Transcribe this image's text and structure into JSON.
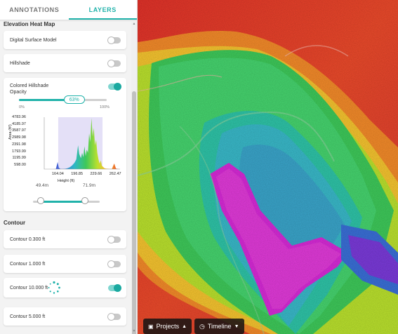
{
  "tabs": [
    {
      "label": "ANNOTATIONS"
    },
    {
      "label": "LAYERS"
    }
  ],
  "elevation": {
    "section_title": "Elevation Heat Map",
    "dsm_label": "Digital Surface Model",
    "hillshade_label": "Hillshade",
    "colored_hillshade_label": "Colored Hillshade",
    "opacity_label": "Opacity",
    "opacity_value_text": "63%",
    "opacity_value": 0.63,
    "opacity_min": "0%",
    "opacity_max": "100%",
    "range_low_label": "49.4m",
    "range_high_label": "71.9m",
    "range_low": 0.12,
    "range_high": 0.78
  },
  "chart_data": {
    "type": "area",
    "xlabel": "Height (ft)",
    "ylabel": "Area (ft²)",
    "x_ticks": [
      "164.04",
      "196.85",
      "229.66",
      "262.47"
    ],
    "y_ticks": [
      "4783.96",
      "4185.97",
      "3587.97",
      "2989.98",
      "2391.98",
      "1793.99",
      "1195.99",
      "598.00"
    ],
    "ylim": [
      0,
      4783.96
    ],
    "xlim": [
      140,
      270
    ],
    "highlight_range": [
      164,
      240
    ],
    "x": [
      140,
      148,
      155,
      160,
      163,
      165,
      168,
      172,
      176,
      180,
      184,
      188,
      192,
      195,
      198,
      200,
      203,
      205,
      207,
      209,
      211,
      213,
      215,
      217,
      219,
      221,
      223,
      225,
      227,
      229,
      231,
      233,
      235,
      237,
      239,
      241,
      243,
      245,
      247,
      249,
      252,
      256,
      260,
      263,
      266,
      270
    ],
    "y": [
      0,
      0,
      0,
      20,
      650,
      120,
      20,
      10,
      30,
      80,
      180,
      350,
      600,
      900,
      2200,
      1400,
      1000,
      1500,
      1100,
      2100,
      1200,
      1800,
      1500,
      3300,
      2500,
      4700,
      3000,
      3800,
      2200,
      2700,
      1500,
      900,
      500,
      800,
      300,
      200,
      100,
      60,
      40,
      30,
      20,
      10,
      520,
      60,
      10,
      0
    ]
  },
  "contour": {
    "section_title": "Contour",
    "items": [
      {
        "label": "Contour 0.300 ft",
        "on": false
      },
      {
        "label": "Contour 1.000 ft",
        "on": false
      },
      {
        "label": "Contour 10.000 ft",
        "on": true
      },
      {
        "label": "Contour 5.000 ft",
        "on": false
      }
    ]
  },
  "bottom": {
    "projects_label": "Projects",
    "timeline_label": "Timeline"
  }
}
